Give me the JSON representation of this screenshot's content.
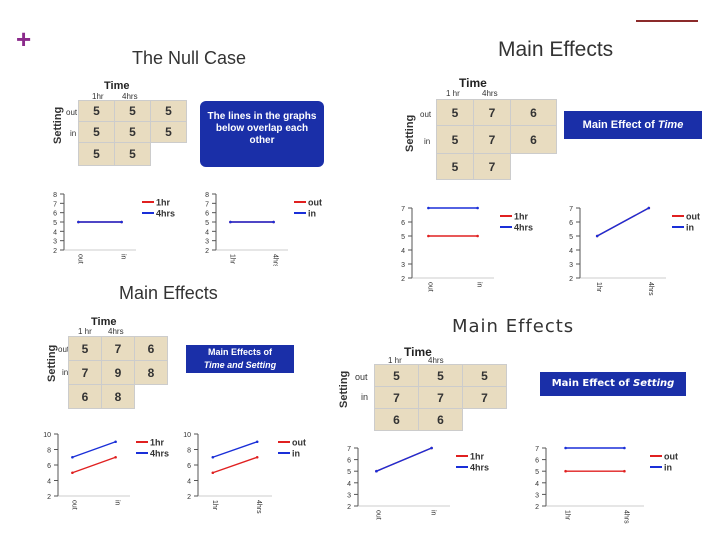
{
  "corner": {
    "plus": "+"
  },
  "panels": {
    "null_case": {
      "title": "The Null Case",
      "time_label": "Time",
      "time_levels": [
        "1hr",
        "4hrs"
      ],
      "setting_label": "Setting",
      "setting_levels": [
        "out",
        "in"
      ],
      "rows": [
        [
          "5",
          "5",
          "5"
        ],
        [
          "5",
          "5",
          "5"
        ],
        [
          "5",
          "5",
          ""
        ]
      ],
      "note": "The lines in the graphs below overlap each other"
    },
    "main_time": {
      "title": "Main Effects",
      "time_label": "Time",
      "time_levels": [
        "1 hr",
        "4hrs"
      ],
      "setting_label": "Setting",
      "setting_levels": [
        "out",
        "in"
      ],
      "rows": [
        [
          "5",
          "7",
          "6"
        ],
        [
          "5",
          "7",
          "6"
        ],
        [
          "5",
          "7",
          ""
        ]
      ],
      "note_prefix": "Main Effect of ",
      "note_em": "Time"
    },
    "main_both": {
      "title": "Main Effects",
      "time_label": "Time",
      "time_levels": [
        "1 hr",
        "4hrs"
      ],
      "setting_label": "Setting",
      "setting_levels": [
        "out",
        "in"
      ],
      "rows": [
        [
          "5",
          "7",
          "6"
        ],
        [
          "7",
          "9",
          "8"
        ],
        [
          "6",
          "8",
          ""
        ]
      ],
      "note_line1": "Main Effects of",
      "note_line2": "Time and Setting"
    },
    "main_setting": {
      "title": "Main Effects",
      "time_label": "Time",
      "time_levels": [
        "1 hr",
        "4hrs"
      ],
      "setting_label": "Setting",
      "setting_levels": [
        "out",
        "in"
      ],
      "rows": [
        [
          "5",
          "5",
          "5"
        ],
        [
          "7",
          "7",
          "7"
        ],
        [
          "6",
          "6",
          ""
        ]
      ],
      "note_prefix": "Main Effect of ",
      "note_em": "Setting"
    }
  },
  "colors": {
    "red": "#e02020",
    "blue": "#1a2fd8"
  },
  "chart_data": [
    {
      "id": "null_by_setting",
      "type": "line",
      "x": [
        "out",
        "in"
      ],
      "ylim": [
        2,
        8
      ],
      "yticks": [
        2,
        3,
        4,
        5,
        6,
        7,
        8
      ],
      "series": [
        {
          "name": "1hr",
          "values": [
            5,
            5
          ],
          "color": "red"
        },
        {
          "name": "4hrs",
          "values": [
            5,
            5
          ],
          "color": "blue"
        }
      ]
    },
    {
      "id": "null_by_time",
      "type": "line",
      "x": [
        "1hr",
        "4hrs"
      ],
      "ylim": [
        2,
        8
      ],
      "yticks": [
        2,
        3,
        4,
        5,
        6,
        7,
        8
      ],
      "series": [
        {
          "name": "out",
          "values": [
            5,
            5
          ],
          "color": "red"
        },
        {
          "name": "in",
          "values": [
            5,
            5
          ],
          "color": "blue"
        }
      ]
    },
    {
      "id": "time_by_setting",
      "type": "line",
      "x": [
        "out",
        "in"
      ],
      "ylim": [
        2,
        7
      ],
      "yticks": [
        2,
        3,
        4,
        5,
        6,
        7
      ],
      "series": [
        {
          "name": "1hr",
          "values": [
            5,
            5
          ],
          "color": "red"
        },
        {
          "name": "4hrs",
          "values": [
            7,
            7
          ],
          "color": "blue"
        }
      ]
    },
    {
      "id": "time_by_time",
      "type": "line",
      "x": [
        "1hr",
        "4hrs"
      ],
      "ylim": [
        2,
        7
      ],
      "yticks": [
        2,
        3,
        4,
        5,
        6,
        7
      ],
      "series": [
        {
          "name": "out",
          "values": [
            5,
            7
          ],
          "color": "red"
        },
        {
          "name": "in",
          "values": [
            5,
            7
          ],
          "color": "blue"
        }
      ]
    },
    {
      "id": "both_by_setting",
      "type": "line",
      "x": [
        "out",
        "in"
      ],
      "ylim": [
        2,
        10
      ],
      "yticks": [
        2,
        4,
        6,
        8,
        10
      ],
      "series": [
        {
          "name": "1hr",
          "values": [
            5,
            7
          ],
          "color": "red"
        },
        {
          "name": "4hrs",
          "values": [
            7,
            9
          ],
          "color": "blue"
        }
      ]
    },
    {
      "id": "both_by_time",
      "type": "line",
      "x": [
        "1hr",
        "4hrs"
      ],
      "ylim": [
        2,
        10
      ],
      "yticks": [
        2,
        4,
        6,
        8,
        10
      ],
      "series": [
        {
          "name": "out",
          "values": [
            5,
            7
          ],
          "color": "red"
        },
        {
          "name": "in",
          "values": [
            7,
            9
          ],
          "color": "blue"
        }
      ]
    },
    {
      "id": "setting_by_setting",
      "type": "line",
      "x": [
        "out",
        "in"
      ],
      "ylim": [
        2,
        7
      ],
      "yticks": [
        2,
        3,
        4,
        5,
        6,
        7
      ],
      "series": [
        {
          "name": "1hr",
          "values": [
            5,
            7
          ],
          "color": "red"
        },
        {
          "name": "4hrs",
          "values": [
            5,
            7
          ],
          "color": "blue"
        }
      ]
    },
    {
      "id": "setting_by_time",
      "type": "line",
      "x": [
        "1hr",
        "4hrs"
      ],
      "ylim": [
        2,
        7
      ],
      "yticks": [
        2,
        3,
        4,
        5,
        6,
        7
      ],
      "series": [
        {
          "name": "out",
          "values": [
            5,
            5
          ],
          "color": "red"
        },
        {
          "name": "in",
          "values": [
            7,
            7
          ],
          "color": "blue"
        }
      ]
    }
  ]
}
